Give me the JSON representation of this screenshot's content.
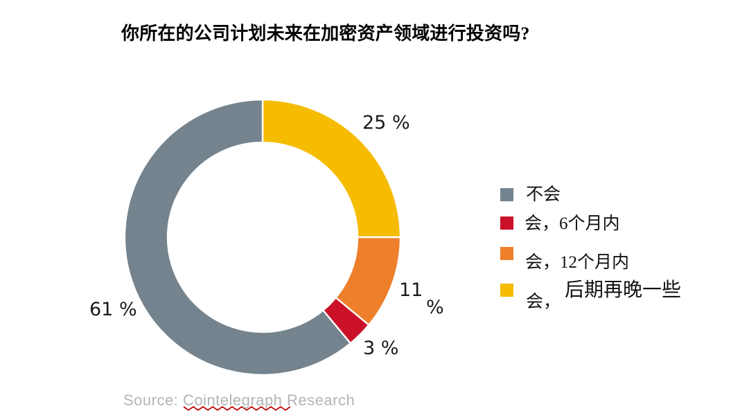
{
  "chart_data": {
    "type": "pie",
    "subtype": "donut",
    "title": "你所在的公司计划未来在加密资产领域进行投资吗?",
    "slices": [
      {
        "label": "不会",
        "value": 61,
        "color": "#74838D",
        "data_label": "61 %"
      },
      {
        "label": "会，6个月内",
        "value": 3,
        "color": "#CB1128",
        "data_label": "3 %"
      },
      {
        "label": "会，12个月内",
        "value": 11,
        "color": "#EE7F2B",
        "data_label": "11 %"
      },
      {
        "label": "会，后期再晚一些",
        "value": 25,
        "color": "#F5BC02",
        "data_label": "25 %"
      }
    ],
    "draw_order_clockwise_from_top": [
      3,
      2,
      1,
      0
    ],
    "start_angle_deg": 0,
    "hole_ratio": 0.69,
    "legend_position": "right",
    "separator_color": "#FFFFFF",
    "source": "Source: Cointelegraph Research"
  },
  "data_labels": {
    "yellow": "25 %",
    "orange_line1": "11",
    "orange_line2": "%",
    "red": "3 %",
    "gray": "61 %"
  },
  "legend": {
    "items": [
      {
        "label": "不会",
        "color": "#74838D"
      },
      {
        "label": "会，6个月内",
        "color": "#CB1128"
      },
      {
        "label": "会，12个月内",
        "color": "#EE7F2B"
      },
      {
        "label": "会，",
        "label2": "后期再晚一些",
        "color": "#F5BC02"
      }
    ]
  },
  "source": {
    "prefix": "Source: ",
    "word": "Cointelegraph",
    "suffix": " Research",
    "spellcheck_color": "#C00000"
  }
}
